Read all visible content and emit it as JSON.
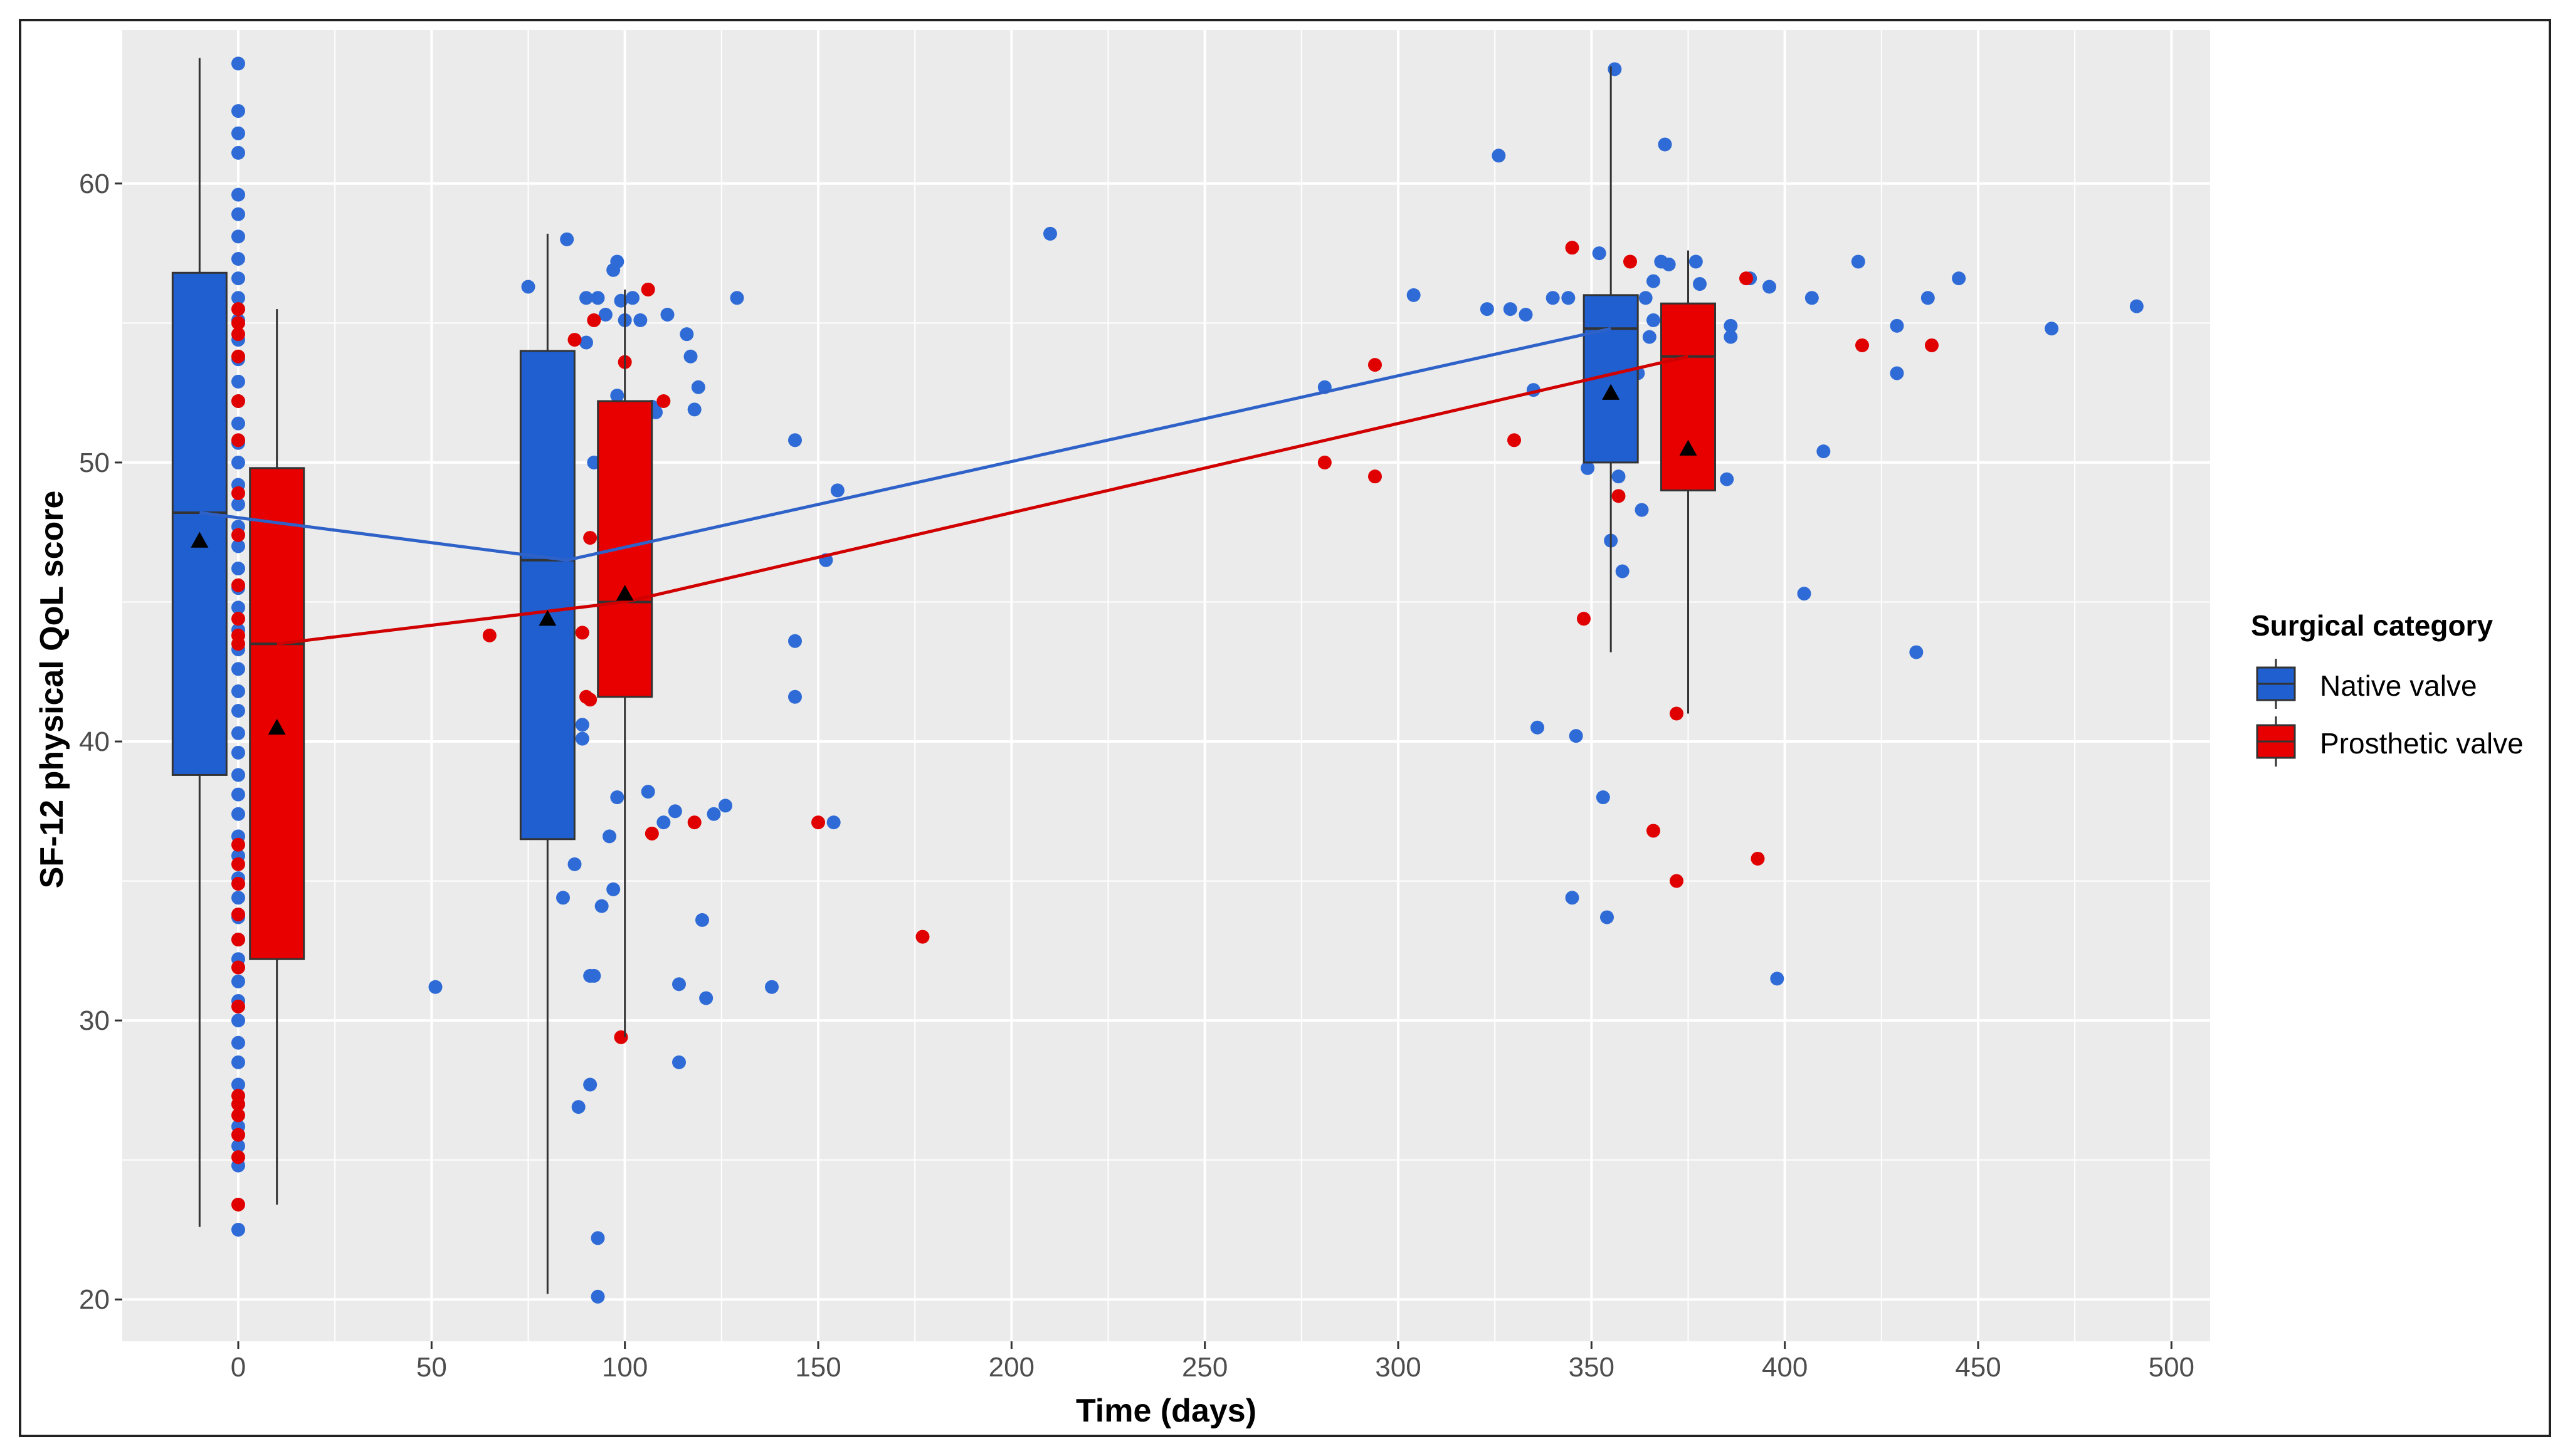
{
  "chart_data": {
    "type": "box+scatter+line",
    "xlabel": "Time (days)",
    "ylabel": "SF-12 physical QoL score",
    "xlim": [
      -30,
      510
    ],
    "ylim": [
      18.5,
      65.5
    ],
    "x_ticks": [
      0,
      50,
      100,
      150,
      200,
      250,
      300,
      350,
      400,
      450,
      500
    ],
    "y_ticks": [
      20,
      30,
      40,
      50,
      60
    ],
    "grid": true,
    "legend": {
      "title": "Surgical category",
      "position": "right",
      "entries": [
        {
          "name": "Native valve",
          "color": "#1F5FD0"
        },
        {
          "name": "Prosthetic valve",
          "color": "#E80000"
        }
      ]
    },
    "series": [
      {
        "name": "Native valve",
        "color": "#1F5FD0",
        "point_color": "#2F6BD6",
        "line": [
          [
            -10,
            48.2
          ],
          [
            85,
            46.5
          ],
          [
            355,
            54.8
          ]
        ],
        "boxes": [
          {
            "x": -10,
            "q1": 38.8,
            "median": 48.2,
            "q3": 56.8,
            "whisker_low": 22.6,
            "whisker_high": 64.5,
            "mean": 47.2
          },
          {
            "x": 80,
            "q1": 36.5,
            "median": 46.5,
            "q3": 54.0,
            "whisker_low": 20.2,
            "whisker_high": 58.2,
            "mean": 44.4
          },
          {
            "x": 355,
            "q1": 50.0,
            "median": 54.8,
            "q3": 56.0,
            "whisker_low": 43.2,
            "whisker_high": 64.2,
            "mean": 52.5
          }
        ],
        "points": [
          [
            0,
            64.3
          ],
          [
            0,
            62.6
          ],
          [
            0,
            61.8
          ],
          [
            0,
            61.1
          ],
          [
            0,
            59.6
          ],
          [
            0,
            58.9
          ],
          [
            0,
            58.1
          ],
          [
            0,
            57.3
          ],
          [
            0,
            56.6
          ],
          [
            0,
            55.9
          ],
          [
            0,
            55.1
          ],
          [
            0,
            54.4
          ],
          [
            0,
            53.7
          ],
          [
            0,
            52.9
          ],
          [
            0,
            52.2
          ],
          [
            0,
            51.4
          ],
          [
            0,
            50.7
          ],
          [
            0,
            50.0
          ],
          [
            0,
            49.2
          ],
          [
            0,
            48.5
          ],
          [
            0,
            47.7
          ],
          [
            0,
            47.0
          ],
          [
            0,
            46.2
          ],
          [
            0,
            45.5
          ],
          [
            0,
            44.8
          ],
          [
            0,
            44.0
          ],
          [
            0,
            43.3
          ],
          [
            0,
            42.6
          ],
          [
            0,
            41.8
          ],
          [
            0,
            41.1
          ],
          [
            0,
            40.3
          ],
          [
            0,
            39.6
          ],
          [
            0,
            38.8
          ],
          [
            0,
            38.1
          ],
          [
            0,
            37.4
          ],
          [
            0,
            36.6
          ],
          [
            0,
            35.9
          ],
          [
            0,
            35.1
          ],
          [
            0,
            34.4
          ],
          [
            0,
            33.7
          ],
          [
            0,
            32.9
          ],
          [
            0,
            32.2
          ],
          [
            0,
            31.4
          ],
          [
            0,
            30.7
          ],
          [
            0,
            30.0
          ],
          [
            0,
            29.2
          ],
          [
            0,
            28.5
          ],
          [
            0,
            27.7
          ],
          [
            0,
            27.0
          ],
          [
            0,
            26.2
          ],
          [
            0,
            25.5
          ],
          [
            0,
            24.8
          ],
          [
            0,
            22.5
          ],
          [
            51,
            31.2
          ],
          [
            75,
            56.3
          ],
          [
            84,
            34.4
          ],
          [
            85,
            58.0
          ],
          [
            87,
            35.6
          ],
          [
            88,
            26.9
          ],
          [
            89,
            40.6
          ],
          [
            89,
            40.1
          ],
          [
            90,
            55.9
          ],
          [
            90,
            54.3
          ],
          [
            91,
            27.7
          ],
          [
            91,
            31.6
          ],
          [
            92,
            50.0
          ],
          [
            92,
            31.6
          ],
          [
            93,
            55.9
          ],
          [
            93,
            22.2
          ],
          [
            93,
            20.1
          ],
          [
            94,
            34.1
          ],
          [
            95,
            55.3
          ],
          [
            96,
            36.6
          ],
          [
            97,
            56.9
          ],
          [
            97,
            34.7
          ],
          [
            98,
            57.2
          ],
          [
            98,
            38.0
          ],
          [
            98,
            52.4
          ],
          [
            99,
            55.8
          ],
          [
            100,
            55.1
          ],
          [
            102,
            55.9
          ],
          [
            104,
            55.1
          ],
          [
            105,
            51.2
          ],
          [
            106,
            38.2
          ],
          [
            107,
            52.0
          ],
          [
            108,
            51.8
          ],
          [
            110,
            37.1
          ],
          [
            111,
            55.3
          ],
          [
            113,
            37.5
          ],
          [
            114,
            31.3
          ],
          [
            114,
            28.5
          ],
          [
            116,
            54.6
          ],
          [
            117,
            53.8
          ],
          [
            118,
            51.9
          ],
          [
            119,
            52.7
          ],
          [
            120,
            33.6
          ],
          [
            121,
            30.8
          ],
          [
            123,
            37.4
          ],
          [
            126,
            37.7
          ],
          [
            129,
            55.9
          ],
          [
            138,
            31.2
          ],
          [
            144,
            50.8
          ],
          [
            144,
            43.6
          ],
          [
            144,
            41.6
          ],
          [
            152,
            46.5
          ],
          [
            154,
            37.1
          ],
          [
            155,
            49.0
          ],
          [
            210,
            58.2
          ],
          [
            281,
            52.7
          ],
          [
            304,
            56.0
          ],
          [
            323,
            55.5
          ],
          [
            326,
            61.0
          ],
          [
            329,
            55.5
          ],
          [
            333,
            55.3
          ],
          [
            335,
            52.6
          ],
          [
            336,
            40.5
          ],
          [
            340,
            55.9
          ],
          [
            344,
            55.9
          ],
          [
            345,
            34.4
          ],
          [
            346,
            40.2
          ],
          [
            349,
            49.8
          ],
          [
            350,
            55.5
          ],
          [
            352,
            57.5
          ],
          [
            353,
            38.0
          ],
          [
            354,
            33.7
          ],
          [
            355,
            47.2
          ],
          [
            356,
            64.1
          ],
          [
            357,
            49.5
          ],
          [
            358,
            46.1
          ],
          [
            360,
            55.3
          ],
          [
            362,
            53.2
          ],
          [
            363,
            48.3
          ],
          [
            364,
            55.9
          ],
          [
            365,
            54.5
          ],
          [
            366,
            56.5
          ],
          [
            366,
            55.1
          ],
          [
            368,
            57.2
          ],
          [
            369,
            61.4
          ],
          [
            370,
            57.1
          ],
          [
            377,
            57.2
          ],
          [
            378,
            56.4
          ],
          [
            385,
            49.4
          ],
          [
            386,
            54.9
          ],
          [
            386,
            54.5
          ],
          [
            391,
            56.6
          ],
          [
            396,
            56.3
          ],
          [
            398,
            31.5
          ],
          [
            405,
            45.3
          ],
          [
            407,
            55.9
          ],
          [
            410,
            50.4
          ],
          [
            419,
            57.2
          ],
          [
            429,
            54.9
          ],
          [
            429,
            53.2
          ],
          [
            434,
            43.2
          ],
          [
            437,
            55.9
          ],
          [
            445,
            56.6
          ],
          [
            469,
            54.8
          ],
          [
            491,
            55.6
          ]
        ]
      },
      {
        "name": "Prosthetic valve",
        "color": "#E80000",
        "point_color": "#E00000",
        "line": [
          [
            10,
            43.5
          ],
          [
            100,
            45.0
          ],
          [
            375,
            53.8
          ]
        ],
        "boxes": [
          {
            "x": 10,
            "q1": 32.2,
            "median": 43.5,
            "q3": 49.8,
            "whisker_low": 23.4,
            "whisker_high": 55.5,
            "mean": 40.5
          },
          {
            "x": 100,
            "q1": 41.6,
            "median": 45.0,
            "q3": 52.2,
            "whisker_low": 29.4,
            "whisker_high": 56.2,
            "mean": 45.3
          },
          {
            "x": 375,
            "q1": 49.0,
            "median": 53.8,
            "q3": 55.7,
            "whisker_low": 41.0,
            "whisker_high": 57.6,
            "mean": 50.5
          }
        ],
        "points": [
          [
            0,
            55.5
          ],
          [
            0,
            55.0
          ],
          [
            0,
            54.6
          ],
          [
            0,
            53.8
          ],
          [
            0,
            52.2
          ],
          [
            0,
            50.8
          ],
          [
            0,
            48.9
          ],
          [
            0,
            47.4
          ],
          [
            0,
            45.6
          ],
          [
            0,
            44.4
          ],
          [
            0,
            43.8
          ],
          [
            0,
            43.5
          ],
          [
            0,
            36.3
          ],
          [
            0,
            35.6
          ],
          [
            0,
            34.9
          ],
          [
            0,
            33.8
          ],
          [
            0,
            32.9
          ],
          [
            0,
            31.9
          ],
          [
            0,
            30.5
          ],
          [
            0,
            27.3
          ],
          [
            0,
            27.0
          ],
          [
            0,
            26.6
          ],
          [
            0,
            25.9
          ],
          [
            0,
            25.1
          ],
          [
            0,
            23.4
          ],
          [
            65,
            43.8
          ],
          [
            87,
            54.4
          ],
          [
            89,
            43.9
          ],
          [
            90,
            41.6
          ],
          [
            91,
            47.3
          ],
          [
            91,
            41.5
          ],
          [
            92,
            55.1
          ],
          [
            99,
            29.4
          ],
          [
            100,
            53.6
          ],
          [
            101,
            44.7
          ],
          [
            106,
            56.2
          ],
          [
            107,
            36.7
          ],
          [
            110,
            52.2
          ],
          [
            118,
            37.1
          ],
          [
            150,
            37.1
          ],
          [
            177,
            33.0
          ],
          [
            281,
            50.0
          ],
          [
            294,
            53.5
          ],
          [
            294,
            49.5
          ],
          [
            330,
            50.8
          ],
          [
            345,
            57.7
          ],
          [
            348,
            44.4
          ],
          [
            357,
            48.8
          ],
          [
            360,
            57.2
          ],
          [
            366,
            36.8
          ],
          [
            372,
            35.0
          ],
          [
            372,
            41.0
          ],
          [
            390,
            56.6
          ],
          [
            393,
            35.8
          ],
          [
            420,
            54.2
          ],
          [
            438,
            54.2
          ]
        ]
      }
    ]
  }
}
